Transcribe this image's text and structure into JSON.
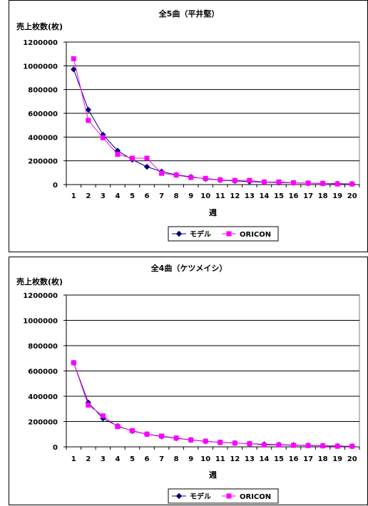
{
  "chart_data": [
    {
      "type": "line",
      "title": "全5曲（平井堅）",
      "ylabel": "売上枚数(枚)",
      "xlabel": "週",
      "ylim": [
        0,
        1200000
      ],
      "yticks": [
        "0",
        "200000",
        "400000",
        "600000",
        "800000",
        "1000000",
        "1200000"
      ],
      "x": [
        1,
        2,
        3,
        4,
        5,
        6,
        7,
        8,
        9,
        10,
        11,
        12,
        13,
        14,
        15,
        16,
        17,
        18,
        19,
        20
      ],
      "grid": true,
      "legend_position": "bottom",
      "series": [
        {
          "name": "モデル",
          "color": "#000080",
          "marker": "diamond",
          "values": [
            970000,
            630000,
            420000,
            285000,
            210000,
            150000,
            110000,
            82000,
            65000,
            48000,
            38000,
            31000,
            25000,
            20000,
            17000,
            14000,
            12000,
            10000,
            8000,
            6000
          ]
        },
        {
          "name": "ORICON",
          "color": "#ff00ff",
          "marker": "square",
          "values": [
            1060000,
            540000,
            395000,
            255000,
            222000,
            222000,
            95000,
            80000,
            60000,
            52000,
            40000,
            35000,
            35000,
            22000,
            22000,
            15000,
            12000,
            10000,
            5000,
            5000
          ]
        }
      ]
    },
    {
      "type": "line",
      "title": "全4曲（ケツメイシ）",
      "ylabel": "売上枚数(枚)",
      "xlabel": "週",
      "ylim": [
        0,
        1200000
      ],
      "yticks": [
        "0",
        "200000",
        "400000",
        "600000",
        "800000",
        "1000000",
        "1200000"
      ],
      "x": [
        1,
        2,
        3,
        4,
        5,
        6,
        7,
        8,
        9,
        10,
        11,
        12,
        13,
        14,
        15,
        16,
        17,
        18,
        19,
        20
      ],
      "grid": true,
      "legend_position": "bottom",
      "series": [
        {
          "name": "モデル",
          "color": "#000080",
          "marker": "diamond",
          "values": [
            665000,
            350000,
            225000,
            165000,
            125000,
            100000,
            82000,
            68000,
            55000,
            44000,
            36000,
            30000,
            25000,
            20000,
            17000,
            14000,
            11000,
            9000,
            7000,
            5000
          ]
        },
        {
          "name": "ORICON",
          "color": "#ff00ff",
          "marker": "square",
          "values": [
            665000,
            330000,
            245000,
            160000,
            128000,
            100000,
            85000,
            70000,
            55000,
            45000,
            35000,
            30000,
            25000,
            15000,
            15000,
            12000,
            10000,
            8000,
            5000,
            5000
          ]
        }
      ]
    }
  ]
}
